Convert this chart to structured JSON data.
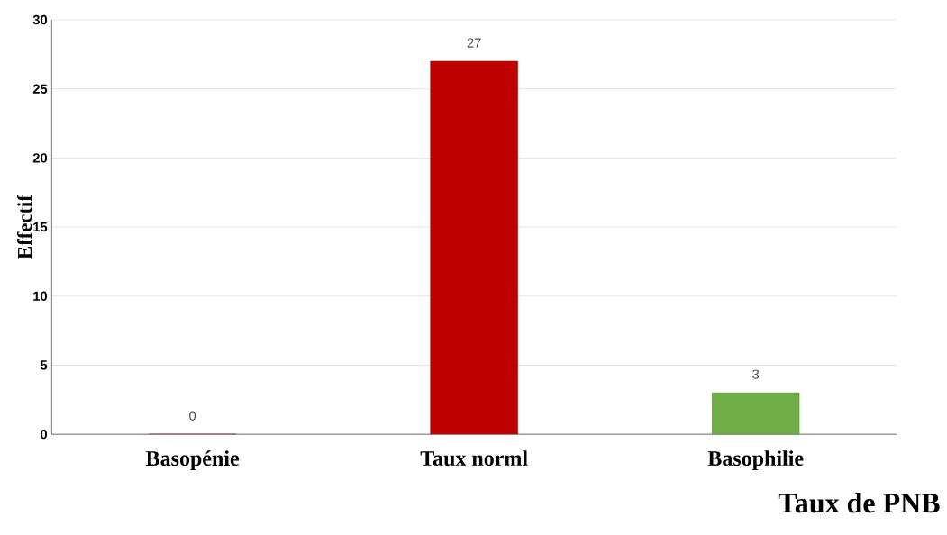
{
  "chart_data": {
    "type": "bar",
    "xlabel": "Taux de PNB",
    "ylabel": "Effectif",
    "categories": [
      "Basopénie",
      "Taux norml",
      "Basophilie"
    ],
    "values": [
      0,
      27,
      3
    ],
    "colors": [
      "#c00000",
      "#c00000",
      "#70ad47"
    ],
    "ylim": [
      0,
      30
    ],
    "yticks": [
      0,
      5,
      10,
      15,
      20,
      25,
      30
    ],
    "grid": "y",
    "data_labels": true
  }
}
